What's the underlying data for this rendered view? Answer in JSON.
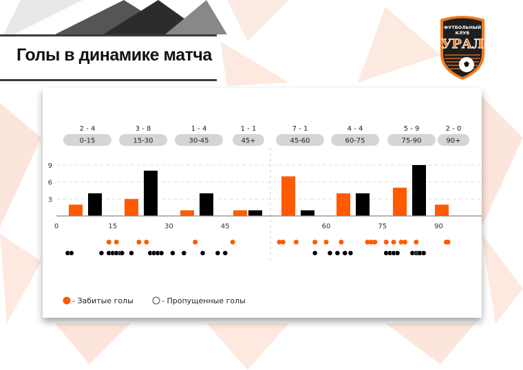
{
  "header": {
    "title": "Голы в динамике матча"
  },
  "logo": {
    "text_top": "ФУТБОЛЬНЫЙ КЛУБ",
    "text_main": "УРАЛ"
  },
  "colors": {
    "scored": "#ff5a00",
    "conceded": "#000000",
    "pill": "#d4d6d3"
  },
  "chart_data": {
    "type": "bar",
    "title": "Голы в динамике матча",
    "categories": [
      "0-15",
      "15-30",
      "30-45",
      "45+",
      "45-60",
      "60-75",
      "75-90",
      "90+"
    ],
    "score_labels": [
      "2 - 4",
      "3 - 8",
      "1 - 4",
      "1 - 1",
      "7 - 1",
      "4 - 4",
      "5 - 9",
      "2 - 0"
    ],
    "series": [
      {
        "name": "Забитые голы",
        "values": [
          2,
          3,
          1,
          1,
          7,
          4,
          5,
          2
        ]
      },
      {
        "name": "Пропущенные голы",
        "values": [
          4,
          8,
          4,
          1,
          1,
          4,
          9,
          0
        ]
      }
    ],
    "ylim": [
      0,
      9
    ],
    "yticks": [
      "3",
      "6",
      "9"
    ],
    "first_half_xticks": [
      "0",
      "15",
      "30",
      "45"
    ],
    "second_half_xticks": [
      "60",
      "75",
      "90"
    ],
    "goal_minutes": {
      "scored_first_half": [
        14,
        16,
        22,
        24,
        37,
        47
      ],
      "conceded_first_half": [
        3,
        4,
        12,
        14,
        15,
        16,
        17,
        17.5,
        20,
        25,
        26,
        27,
        28,
        31,
        34,
        39,
        43,
        45
      ],
      "scored_second_half": [
        47.5,
        48.5,
        52,
        57,
        60,
        64,
        71,
        72,
        73,
        76,
        78,
        80,
        81,
        84,
        92,
        92.5
      ],
      "conceded_second_half": [
        57,
        61,
        63,
        65,
        66.5,
        76,
        77,
        78,
        79,
        83,
        84,
        84.5,
        85,
        86
      ]
    },
    "legend": {
      "scored": "- Забитые голы",
      "conceded": "- Пропущенные голы",
      "placement": "bottom-left"
    },
    "grid": true
  }
}
